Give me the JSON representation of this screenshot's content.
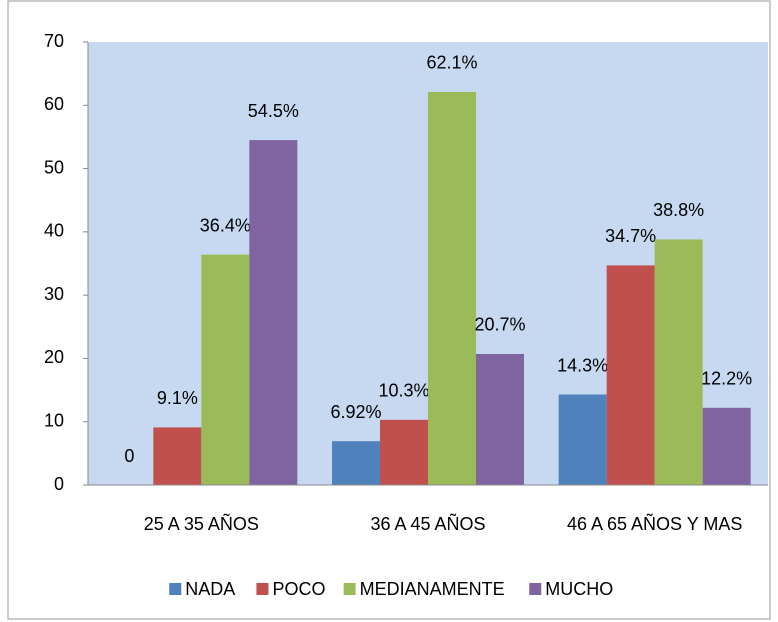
{
  "chart_data": {
    "type": "bar",
    "categories": [
      "25  A 35 AÑOS",
      "36 A 45 AÑOS",
      "46 A 65 AÑOS Y MAS"
    ],
    "series": [
      {
        "name": "NADA",
        "color": "#4f81bd",
        "values": [
          0,
          6.92,
          14.3
        ],
        "value_labels": [
          "0",
          "6.92%",
          "14.3%"
        ]
      },
      {
        "name": "POCO",
        "color": "#c0504d",
        "values": [
          9.1,
          10.3,
          34.7
        ],
        "value_labels": [
          "9.1%",
          "10.3%",
          "34.7%"
        ]
      },
      {
        "name": "MEDIANAMENTE",
        "color": "#9bbb59",
        "values": [
          36.4,
          62.1,
          38.8
        ],
        "value_labels": [
          "36.4%",
          "62.1%",
          "38.8%"
        ]
      },
      {
        "name": "MUCHO",
        "color": "#8064a2",
        "values": [
          54.5,
          20.7,
          12.2
        ],
        "value_labels": [
          "54.5%",
          "20.7%",
          "12.2%"
        ]
      }
    ],
    "ylim": [
      0,
      70
    ],
    "yticks": [
      0,
      10,
      20,
      30,
      40,
      50,
      60,
      70
    ],
    "grid": false,
    "legend": "bottom"
  }
}
